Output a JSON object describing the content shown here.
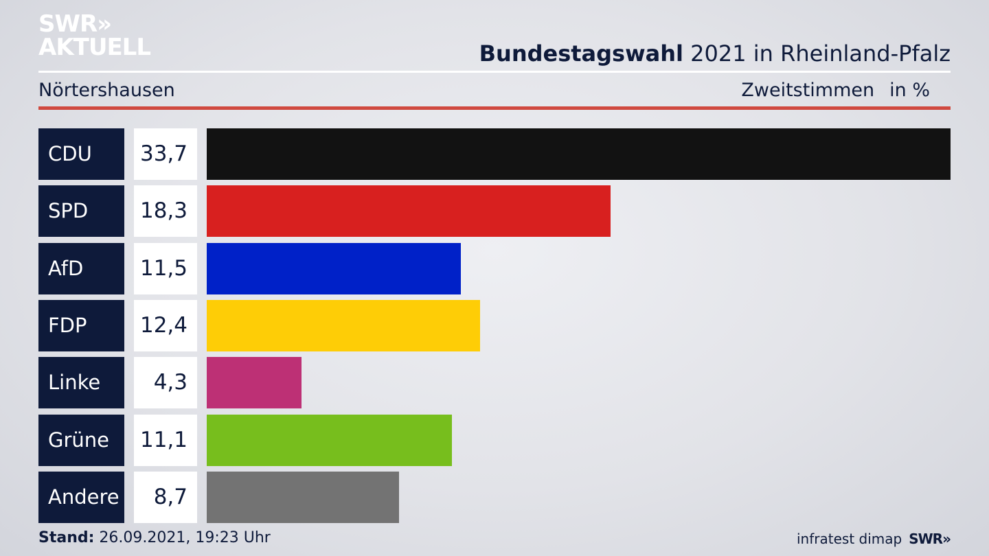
{
  "logo": {
    "line1": "SWR»",
    "line2": "AKTUELL"
  },
  "header": {
    "title_bold": "Bundestagswahl",
    "title_rest": "2021 in Rheinland-Pfalz",
    "location": "Nörtershausen",
    "measure": "Zweitstimmen",
    "unit": "in %"
  },
  "footer": {
    "stand_label": "Stand:",
    "stand_value": "26.09.2021, 19:23 Uhr",
    "source": "infratest dimap",
    "brand": "SWR»"
  },
  "chart_data": {
    "type": "bar",
    "orientation": "horizontal",
    "categories": [
      "CDU",
      "SPD",
      "AfD",
      "FDP",
      "Linke",
      "Grüne",
      "Andere"
    ],
    "values": [
      33.7,
      18.3,
      11.5,
      12.4,
      4.3,
      11.1,
      8.7
    ],
    "value_labels": [
      "33,7",
      "18,3",
      "11,5",
      "12,4",
      "4,3",
      "11,1",
      "8,7"
    ],
    "colors": [
      "#121212",
      "#d8201f",
      "#0021c8",
      "#fecd06",
      "#bd3075",
      "#77be1d",
      "#737373"
    ],
    "xlim": [
      0,
      33.7
    ],
    "grid": false,
    "legend": "none"
  }
}
